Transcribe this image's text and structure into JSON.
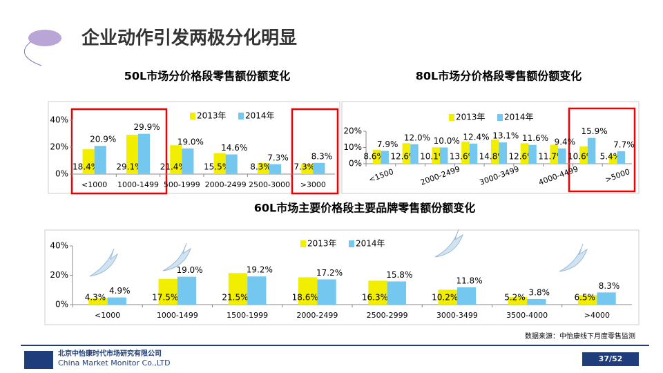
{
  "slide": {
    "title": "企业动作引发两极分化明显",
    "company_cn": "北京中怡康时代市场研究有限公司",
    "company_en": "China Market Monitor Co.,LTD",
    "page": "37/52",
    "source": "数据来源：中怡康线下月度零售监测"
  },
  "chart_data": [
    {
      "type": "bar",
      "title": "50L市场分价格段零售额份额变化",
      "categories": [
        "<1000",
        "1000-1499",
        "500-1999",
        "2000-2499",
        "2500-3000",
        ">3000"
      ],
      "series": [
        {
          "name": "2013年",
          "color": "#f2ee00",
          "values": [
            18.4,
            29.1,
            21.4,
            15.5,
            8.3,
            7.3
          ],
          "value_labels": [
            "18.4%",
            "29.1%",
            "21.4%",
            "15.5%",
            "8.3%",
            "7.3%"
          ]
        },
        {
          "name": "2014年",
          "color": "#74c8f0",
          "values": [
            20.9,
            29.9,
            19.0,
            14.6,
            7.3,
            8.3
          ],
          "value_labels": [
            "20.9%",
            "29.9%",
            "19.0%",
            "14.6%",
            "7.3%",
            "8.3%"
          ]
        }
      ],
      "ylim": [
        0,
        40
      ],
      "yticks": [
        {
          "value": 0,
          "label": "0%"
        },
        {
          "value": 20,
          "label": "20%"
        },
        {
          "value": 40,
          "label": "40%"
        }
      ],
      "legend": "top"
    },
    {
      "type": "bar",
      "title": "80L市场分价格段零售额份额变化",
      "categories": [
        "<1500",
        null,
        "2000-2499",
        null,
        "3000-3499",
        null,
        "4000-4499",
        null,
        ">5000"
      ],
      "series": [
        {
          "name": "2013年",
          "color": "#f2ee00",
          "values": [
            8.6,
            12.6,
            10.1,
            13.6,
            14.8,
            12.6,
            11.7,
            10.6,
            5.4
          ],
          "value_labels": [
            "8.6%",
            "12.6%",
            "10.1%",
            "13.6%",
            "14.8%",
            "12.6%",
            "11.7%",
            "10.6%",
            "5.4%"
          ]
        },
        {
          "name": "2014年",
          "color": "#74c8f0",
          "values": [
            7.9,
            12.0,
            10.0,
            12.4,
            13.1,
            11.6,
            9.4,
            15.9,
            7.7
          ],
          "value_labels": [
            "7.9%",
            "12.0%",
            "10.0%",
            "12.4%",
            "13.1%",
            "11.6%",
            "9.4%",
            "15.9%",
            "7.7%"
          ]
        }
      ],
      "ylim": [
        0,
        20
      ],
      "yticks": [
        {
          "value": 0,
          "label": "0%"
        },
        {
          "value": 10,
          "label": "10%"
        },
        {
          "value": 20,
          "label": "20%"
        }
      ],
      "legend": "top"
    },
    {
      "type": "bar",
      "title": "60L市场主要价格段主要品牌零售额份额变化",
      "categories": [
        "<1000",
        "1000-1499",
        "1500-1999",
        "2000-2499",
        "2500-2999",
        "3000-3499",
        "3500-4000",
        ">4000"
      ],
      "series": [
        {
          "name": "2013年",
          "color": "#f2ee00",
          "values": [
            4.3,
            17.5,
            21.5,
            18.6,
            16.3,
            10.2,
            5.2,
            6.5
          ],
          "value_labels": [
            "4.3%",
            "17.5%",
            "21.5%",
            "18.6%",
            "16.3%",
            "10.2%",
            "5.2%",
            "6.5%"
          ]
        },
        {
          "name": "2014年",
          "color": "#74c8f0",
          "values": [
            4.9,
            19.0,
            19.2,
            17.2,
            15.8,
            11.8,
            3.8,
            8.3
          ],
          "value_labels": [
            "4.9%",
            "19.0%",
            "19.2%",
            "17.2%",
            "15.8%",
            "11.8%",
            "3.8%",
            "8.3%"
          ]
        }
      ],
      "ylim": [
        0,
        40
      ],
      "yticks": [
        {
          "value": 0,
          "label": "0%"
        },
        {
          "value": 20,
          "label": "20%"
        },
        {
          "value": 40,
          "label": "40%"
        }
      ],
      "legend": "top"
    }
  ]
}
